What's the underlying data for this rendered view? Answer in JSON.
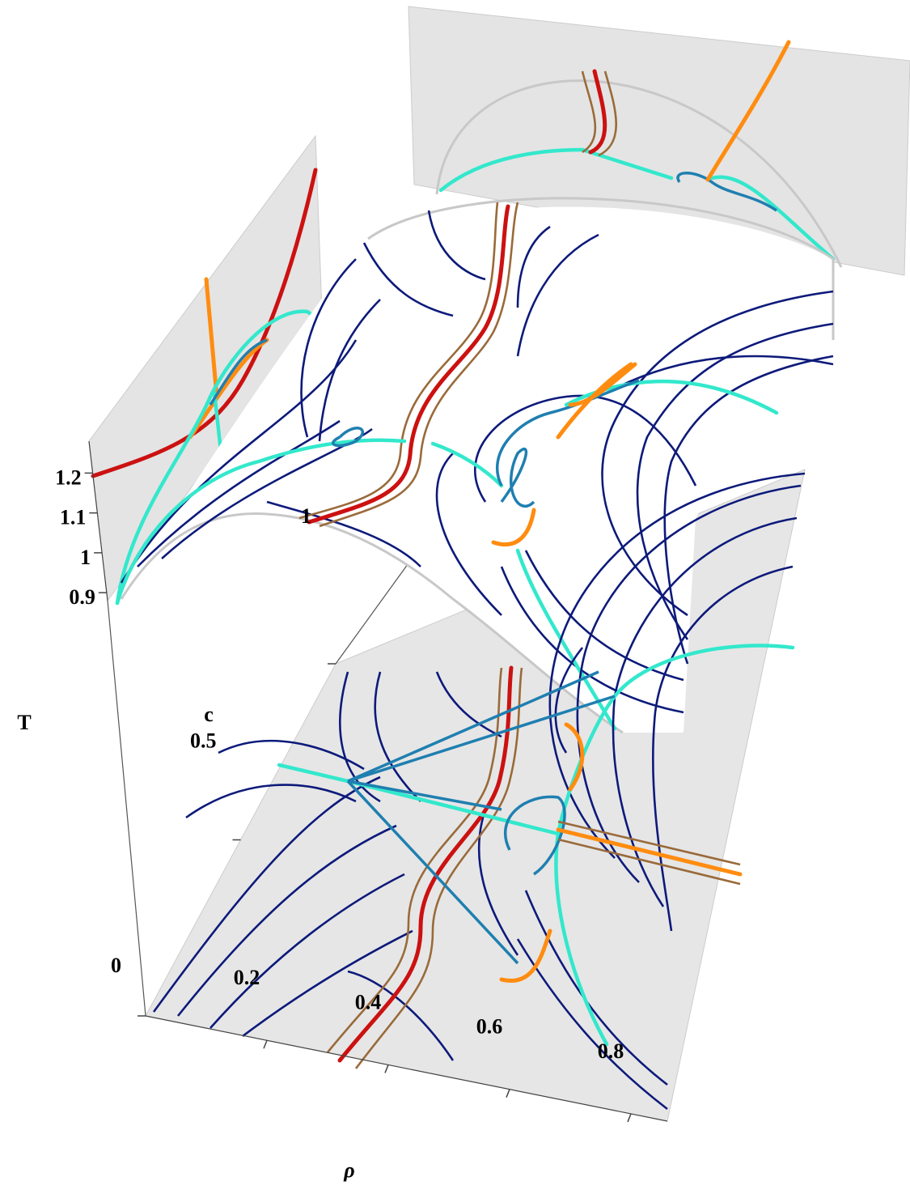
{
  "chart_data": {
    "type": "surface3d",
    "xlabel": "ρ",
    "ylabel": "c",
    "zlabel": "T",
    "xlim": [
      0,
      0.86
    ],
    "ylim": [
      0,
      1
    ],
    "zlim": [
      0.88,
      1.28
    ],
    "xticks": [
      0.2,
      0.4,
      0.6,
      0.8
    ],
    "yticks": [
      0,
      0.5,
      1
    ],
    "zticks": [
      0.9,
      1,
      1.1,
      1.2
    ]
  }
}
